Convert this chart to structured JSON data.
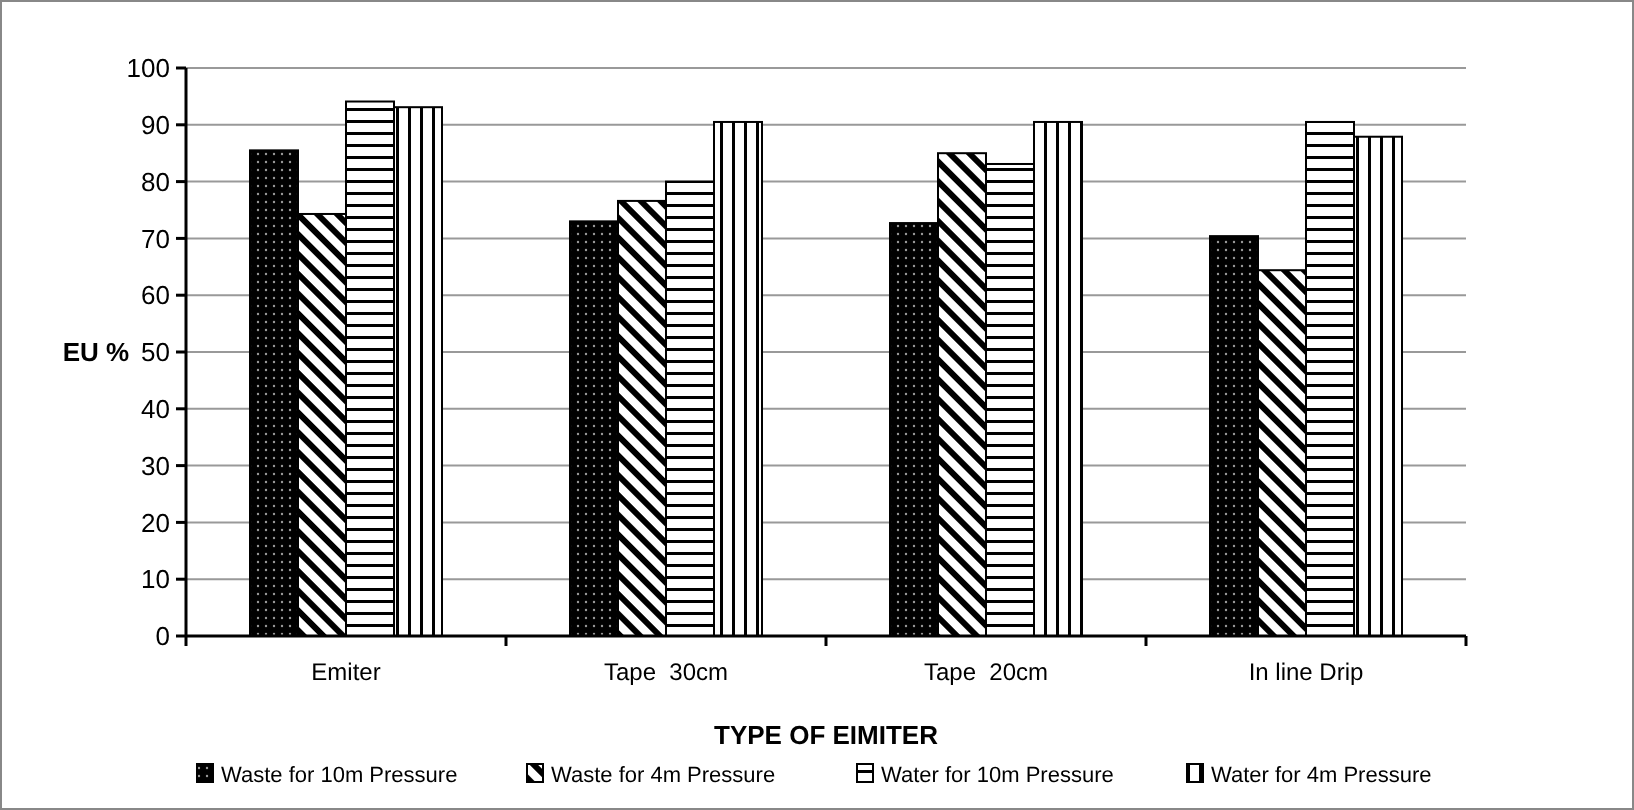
{
  "chart_data": {
    "type": "bar",
    "xlabel": "TYPE OF EIMITER",
    "ylabel": "EU %",
    "categories": [
      "Emiter",
      "Tape  30cm",
      "Tape  20cm",
      "In line Drip"
    ],
    "series": [
      {
        "name": "Waste for 10m Pressure",
        "color": "#000000",
        "values": [
          85.5,
          73,
          72.7,
          70.4
        ]
      },
      {
        "name": "Waste for 4m Pressure",
        "color": "#000000",
        "values": [
          74.3,
          76.6,
          85,
          64.4
        ]
      },
      {
        "name": "Water for 10m Pressure",
        "color": "#000000",
        "values": [
          94.1,
          80,
          83.1,
          90.5
        ]
      },
      {
        "name": "Water for 4m Pressure",
        "color": "#000000",
        "values": [
          93.1,
          90.5,
          90.5,
          87.9
        ]
      }
    ],
    "ylim": [
      0,
      100
    ],
    "yticks": [
      0,
      10,
      20,
      30,
      40,
      50,
      60,
      70,
      80,
      90,
      100
    ],
    "grid": "y",
    "legend": "bottom"
  }
}
